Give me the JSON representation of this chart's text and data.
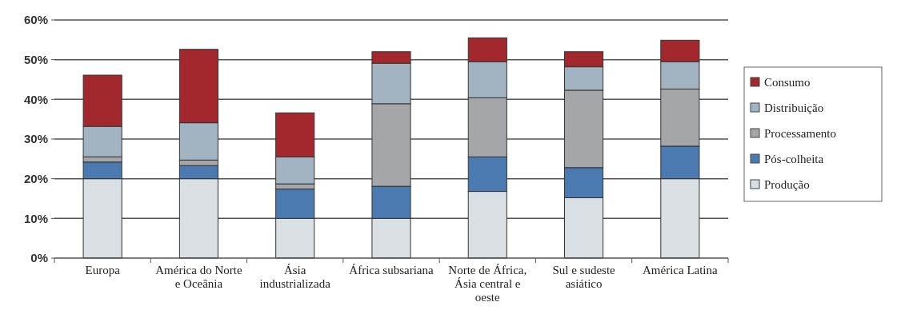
{
  "chart_data": {
    "type": "bar",
    "stacked": true,
    "categories": [
      "Europa",
      "América do Norte e Oceânia",
      "Ásia industrializada",
      "África subsariana",
      "Norte de África, Ásia central e oeste",
      "Sul e sudeste asiático",
      "América Latina"
    ],
    "series": [
      {
        "name": "Produção",
        "color": "#d9dfe3",
        "values": [
          20,
          20,
          10,
          10,
          16.8,
          15.2,
          20
        ]
      },
      {
        "name": "Pós-colheita",
        "color": "#4a7aaf",
        "values": [
          4.2,
          3.3,
          7.4,
          8.1,
          8.7,
          7.6,
          8.2
        ]
      },
      {
        "name": "Processamento",
        "color": "#a5a6a8",
        "values": [
          1.3,
          1.4,
          1.3,
          20.8,
          14.9,
          19.5,
          14.4
        ]
      },
      {
        "name": "Distribuição",
        "color": "#a2b3c2",
        "values": [
          7.7,
          9.4,
          6.8,
          10.2,
          9.1,
          5.9,
          6.9
        ]
      },
      {
        "name": "Consumo",
        "color": "#a3282e",
        "values": [
          12.9,
          18.5,
          11.1,
          2.9,
          6.0,
          3.8,
          5.4
        ]
      }
    ],
    "ylim": [
      0,
      60
    ],
    "yticks": [
      {
        "value": 0,
        "label": "0%"
      },
      {
        "value": 10,
        "label": "10%"
      },
      {
        "value": 20,
        "label": "20%"
      },
      {
        "value": 30,
        "label": "30%"
      },
      {
        "value": 40,
        "label": "40%"
      },
      {
        "value": 50,
        "label": "50%"
      },
      {
        "value": 60,
        "label": "60%"
      }
    ],
    "grid": "y",
    "legend": "right"
  }
}
